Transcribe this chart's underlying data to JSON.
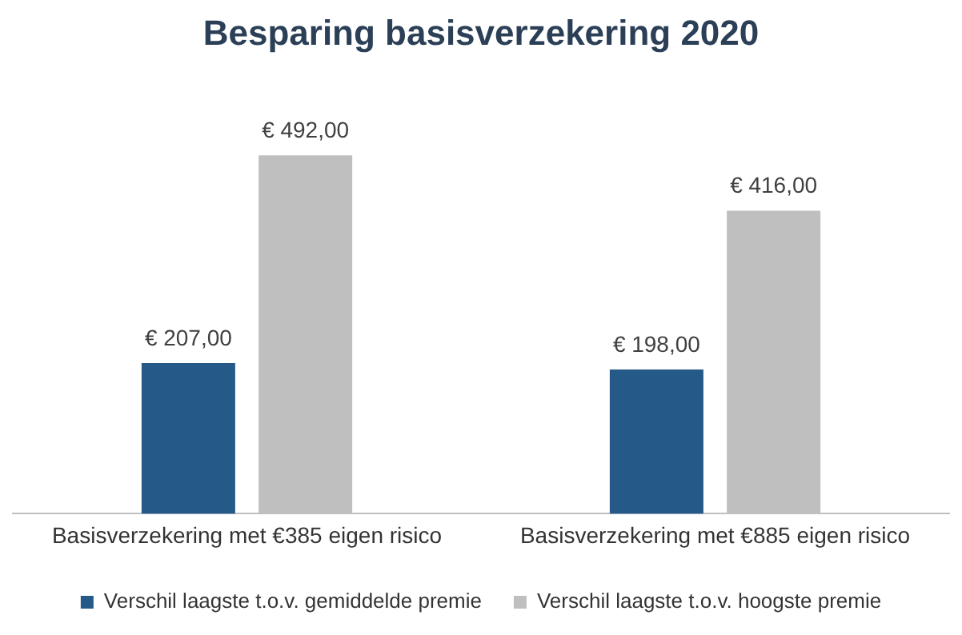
{
  "chart_data": {
    "type": "bar",
    "title": "Besparing basisverzekering 2020",
    "categories": [
      "Basisverzekering met €385 eigen risico",
      "Basisverzekering met €885 eigen risico"
    ],
    "series": [
      {
        "name": "Verschil laagste t.o.v. gemiddelde premie",
        "color": "#255a88",
        "values": [
          207,
          198
        ],
        "value_labels": [
          "€ 207,00",
          "€ 198,00"
        ]
      },
      {
        "name": "Verschil laagste t.o.v. hoogste premie",
        "color": "#bfbfbf",
        "values": [
          492,
          416
        ],
        "value_labels": [
          "€ 492,00",
          "€ 416,00"
        ]
      }
    ],
    "legend": "bottom"
  }
}
